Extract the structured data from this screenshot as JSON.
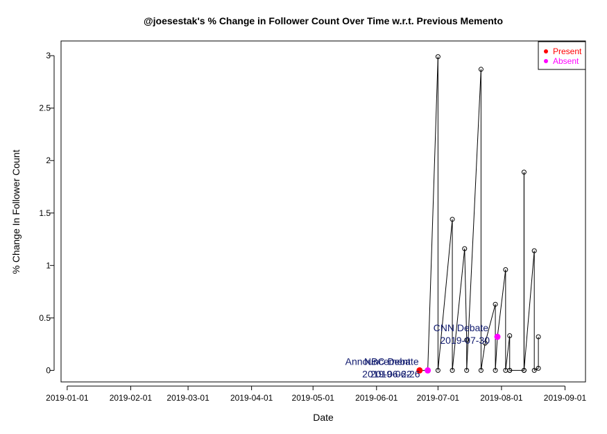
{
  "chart_data": {
    "type": "scatter",
    "title": "@joesestak's % Change in Follower Count Over Time w.r.t. Previous Memento",
    "xlabel": "Date",
    "ylabel": "% Change In Follower Count",
    "x_axis": {
      "scale": "date",
      "range": [
        "2018-12-29",
        "2019-09-11"
      ],
      "ticks": [
        "2019-01-01",
        "2019-02-01",
        "2019-03-01",
        "2019-04-01",
        "2019-05-01",
        "2019-06-01",
        "2019-07-01",
        "2019-08-01",
        "2019-09-01"
      ]
    },
    "y_axis": {
      "range": [
        -0.11,
        3.14
      ],
      "ticks": [
        0,
        0.5,
        1,
        1.5,
        2,
        2.5,
        3
      ],
      "tick_labels": [
        "0",
        "0.5",
        "1",
        "1.5",
        "2",
        "2.5",
        "3"
      ]
    },
    "grid": false,
    "series": [
      {
        "style": "line-with-open-circles",
        "color": "#000000",
        "points": [
          {
            "x": "2019-06-22",
            "y": 0
          },
          {
            "x": "2019-06-26",
            "y": 0
          },
          {
            "x": "2019-07-01",
            "y": 2.99
          },
          {
            "x": "2019-07-01",
            "y": 0
          },
          {
            "x": "2019-07-08",
            "y": 1.44
          },
          {
            "x": "2019-07-08",
            "y": 0
          },
          {
            "x": "2019-07-14",
            "y": 1.16
          },
          {
            "x": "2019-07-15",
            "y": 0.29
          },
          {
            "x": "2019-07-15",
            "y": 0
          },
          {
            "x": "2019-07-22",
            "y": 2.87
          },
          {
            "x": "2019-07-22",
            "y": 0
          },
          {
            "x": "2019-07-24",
            "y": 0.26
          },
          {
            "x": "2019-07-29",
            "y": 0.63
          },
          {
            "x": "2019-07-29",
            "y": 0
          },
          {
            "x": "2019-07-30",
            "y": 0.32
          },
          {
            "x": "2019-08-03",
            "y": 0.96
          },
          {
            "x": "2019-08-03",
            "y": 0
          },
          {
            "x": "2019-08-05",
            "y": 0.33
          },
          {
            "x": "2019-08-05",
            "y": 0
          },
          {
            "x": "2019-08-05",
            "y": 0
          },
          {
            "x": "2019-08-12",
            "y": 0
          },
          {
            "x": "2019-08-12",
            "y": 1.89
          },
          {
            "x": "2019-08-12",
            "y": 0
          },
          {
            "x": "2019-08-17",
            "y": 1.14
          },
          {
            "x": "2019-08-17",
            "y": 0
          },
          {
            "x": "2019-08-19",
            "y": 0.02
          },
          {
            "x": "2019-08-19",
            "y": 0.32
          }
        ]
      }
    ],
    "markers": [
      {
        "name": "Present",
        "x": "2019-06-22",
        "y": 0,
        "color": "#ff0000"
      },
      {
        "name": "Absent",
        "x": "2019-06-26",
        "y": 0,
        "color": "#ff00ff"
      },
      {
        "name": "Absent",
        "x": "2019-07-30",
        "y": 0.32,
        "color": "#ff00ff"
      }
    ],
    "legend": {
      "position": "top-right",
      "entries": [
        {
          "label": "Present",
          "color": "#ff0000"
        },
        {
          "label": "Absent",
          "color": "#ff00ff"
        }
      ]
    },
    "annotations": [
      {
        "line1": "Announcement",
        "line2": "2019-06-22",
        "x": "2019-06-22",
        "y": 0
      },
      {
        "line1": "NBC Debate",
        "line2": "2019-06-26",
        "x": "2019-06-26",
        "y": 0
      },
      {
        "line1": "CNN Debate",
        "line2": "2019-07-30",
        "x": "2019-07-30",
        "y": 0.32
      }
    ],
    "annotation_color": "#101a6e"
  }
}
